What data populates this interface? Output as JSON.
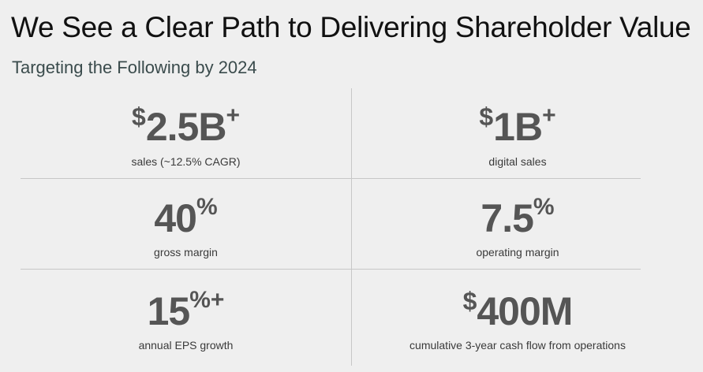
{
  "slide": {
    "title": "We See a Clear Path to Delivering Shareholder Value",
    "subtitle": "Targeting the Following by 2024"
  },
  "targets": [
    {
      "prefix": "$",
      "value": "2.5B",
      "suffix": "+",
      "label": "sales (~12.5% CAGR)"
    },
    {
      "prefix": "$",
      "value": "1B",
      "suffix": "+",
      "label": "digital sales"
    },
    {
      "prefix": "",
      "value": "40",
      "suffix": "%",
      "label": "gross margin"
    },
    {
      "prefix": "",
      "value": "7.5",
      "suffix": "%",
      "label": "operating margin"
    },
    {
      "prefix": "",
      "value": "15",
      "suffix": "%+",
      "label": "annual EPS growth"
    },
    {
      "prefix": "$",
      "value": "400M",
      "suffix": "",
      "label": "cumulative 3-year cash flow from operations"
    }
  ]
}
